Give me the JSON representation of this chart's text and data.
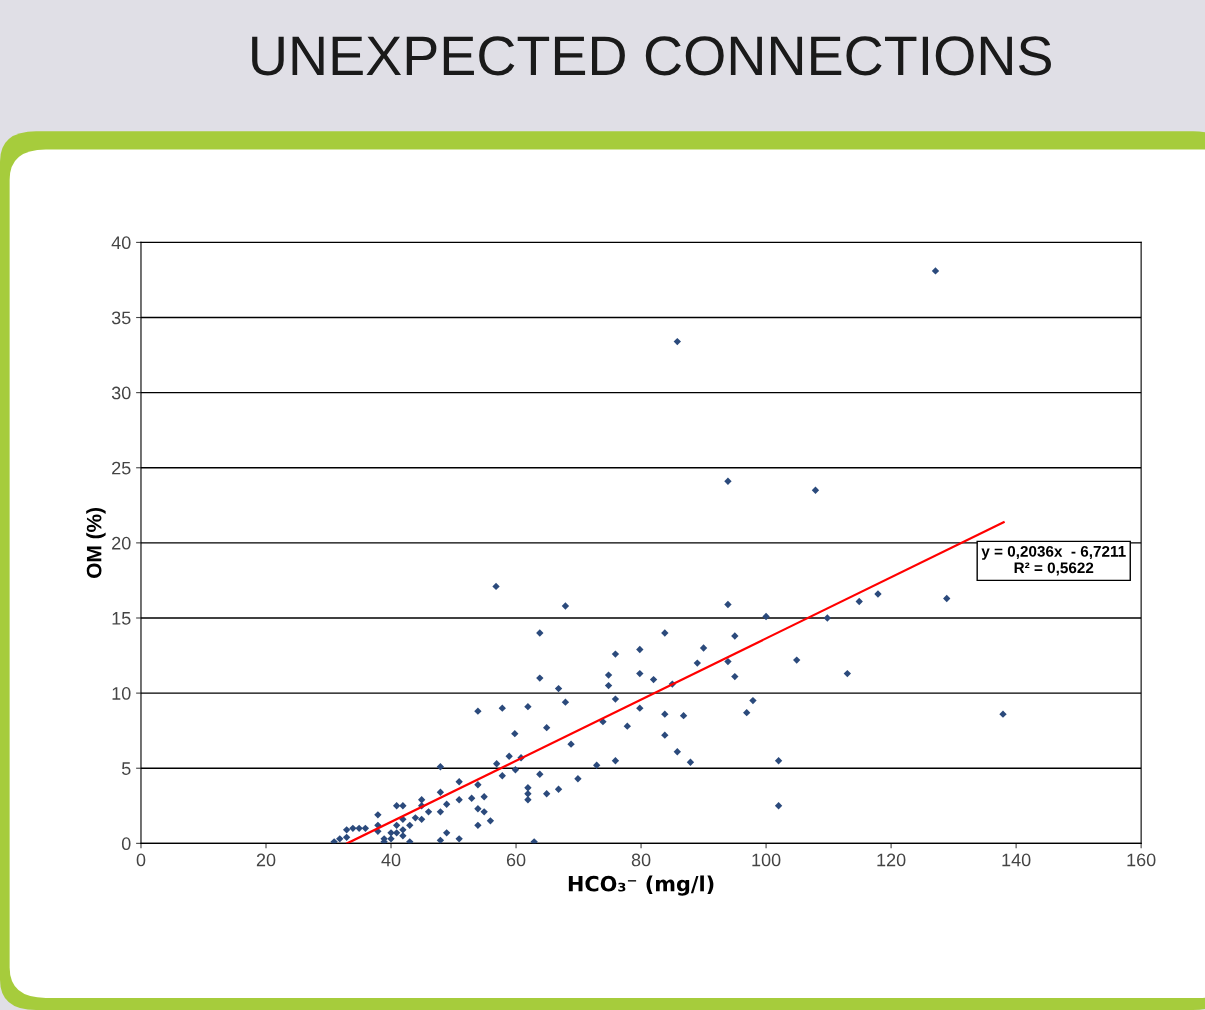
{
  "chart_data": {
    "type": "scatter",
    "title": "UNEXPECTED CONNECTIONS",
    "xlabel": "HCO₃⁻ (mg/l)",
    "ylabel": "OM (%)",
    "xlim": [
      0,
      160
    ],
    "xticks": [
      0,
      20,
      40,
      60,
      80,
      100,
      120,
      140,
      160
    ],
    "ylim": [
      0,
      40
    ],
    "yticks": [
      0,
      5,
      10,
      15,
      20,
      25,
      30,
      35,
      40
    ],
    "grid": "y",
    "legend": false,
    "marker": "diamond",
    "annotations": [
      "y = 0,2036x  - 6,7211\nR² = 0,5622"
    ],
    "series": [
      {
        "color": "#2b4a7c",
        "x": [
          127.1,
          85.8,
          93.9,
          107.9,
          56.8,
          67.9,
          93.9,
          100,
          109.8,
          114.9,
          117.9,
          128.9,
          137.9,
          113,
          104.9,
          102,
          102,
          95,
          93.9,
          95,
          90,
          89,
          85,
          83.8,
          82,
          79.8,
          79.8,
          79.8,
          83.8,
          83.8,
          86.8,
          85.8,
          87.9,
          96.9,
          97.9,
          75.9,
          74.8,
          74.8,
          75.9,
          73.9,
          77.8,
          75.9,
          72.9,
          69.9,
          68.8,
          67.9,
          66.8,
          63.8,
          63.8,
          64.9,
          61.9,
          59.8,
          57.8,
          53.9,
          58.9,
          60.8,
          59.9,
          56.9,
          57.8,
          63.8,
          61.9,
          61.9,
          61.9,
          64.9,
          66.8,
          62.9,
          47.9,
          50.9,
          53.9,
          54.9,
          53.9,
          54.9,
          55.9,
          53.9,
          52.9,
          50.9,
          48.9,
          47.9,
          47.9,
          48.9,
          47.9,
          50.9,
          46,
          44.9,
          44.9,
          44.9,
          43,
          43.9,
          41.9,
          40.9,
          41.9,
          40.9,
          41.9,
          40.9,
          41.9,
          40,
          38.9,
          40,
          43,
          37.9,
          37.9,
          37.9,
          35.9,
          34.9,
          33.9,
          32.9,
          31.8,
          30.9,
          32.9,
          38.9
        ],
        "values": [
          38.1,
          33.4,
          24.1,
          23.5,
          17.1,
          15.8,
          15.9,
          15.1,
          15.0,
          16.1,
          16.6,
          16.3,
          8.6,
          11.3,
          12.2,
          5.5,
          2.5,
          13.8,
          12.1,
          11.1,
          13,
          12,
          10.6,
          14,
          10.9,
          12.9,
          11.3,
          9,
          8.6,
          7.2,
          8.5,
          6.1,
          5.4,
          8.7,
          9.5,
          12.6,
          11.2,
          10.5,
          9.6,
          8.1,
          7.8,
          5.5,
          5.2,
          4.3,
          6.6,
          9.4,
          10.3,
          14,
          11,
          7.7,
          9.1,
          7.3,
          9,
          8.8,
          5.8,
          5.7,
          4.9,
          5.3,
          4.5,
          4.6,
          3.7,
          3.3,
          2.9,
          3.3,
          3.6,
          0.1,
          5.1,
          4.1,
          3.9,
          3.1,
          2.3,
          2.1,
          1.5,
          1.2,
          3,
          2.9,
          2.6,
          3.4,
          2.1,
          0.7,
          0.2,
          0.3,
          2.1,
          2.9,
          2.5,
          1.6,
          1.2,
          1.7,
          2.5,
          2.5,
          1.6,
          1.2,
          0.9,
          0.7,
          0.5,
          0.3,
          0.3,
          0.7,
          0.1,
          1.9,
          1.2,
          0.8,
          1,
          1,
          1,
          0.9,
          0.3,
          0.1,
          0.4,
          0.1
        ]
      },
      {
        "type": "line",
        "color": "#ff0000",
        "x": [
          33.0,
          138.0
        ],
        "values": [
          0.0,
          21.38
        ],
        "marker": "none",
        "line_style": "solid"
      }
    ]
  }
}
